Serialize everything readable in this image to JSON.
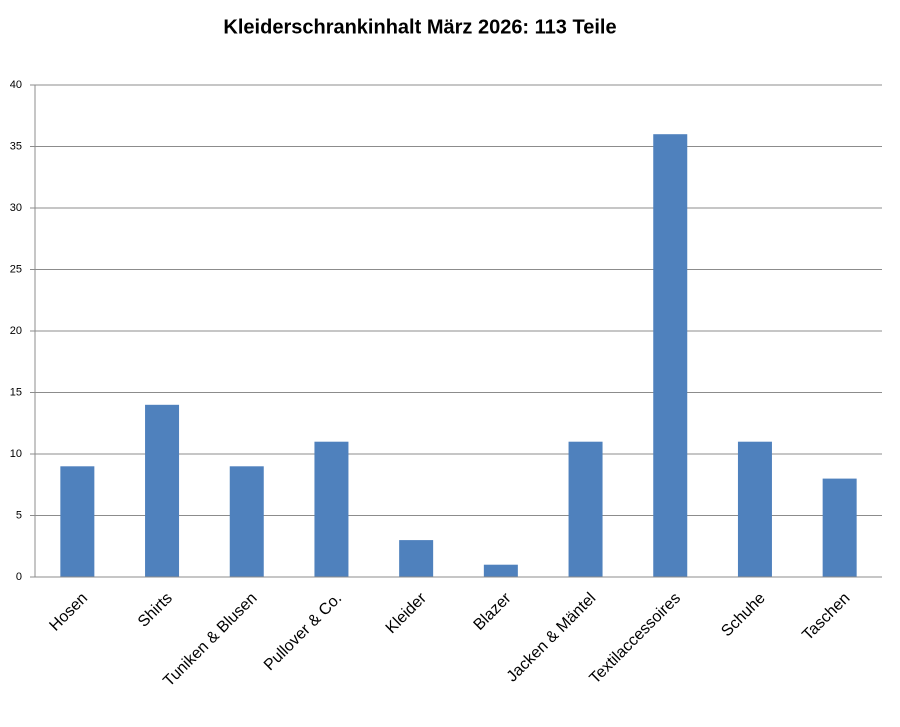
{
  "chart_data": {
    "type": "bar",
    "title": "Kleiderschrankinhalt März 2026: 113 Teile",
    "categories": [
      "Hosen",
      "Shirts",
      "Tuniken & Blusen",
      "Pullover & Co.",
      "Kleider",
      "Blazer",
      "Jacken & Mäntel",
      "Textilaccessoires",
      "Schuhe",
      "Taschen"
    ],
    "values": [
      9,
      14,
      9,
      11,
      3,
      1,
      11,
      36,
      11,
      8
    ],
    "color": "#4f81bd",
    "ylim": [
      0,
      40
    ],
    "yticks": [
      0,
      5,
      10,
      15,
      20,
      25,
      30,
      35,
      40
    ],
    "grid": true
  }
}
